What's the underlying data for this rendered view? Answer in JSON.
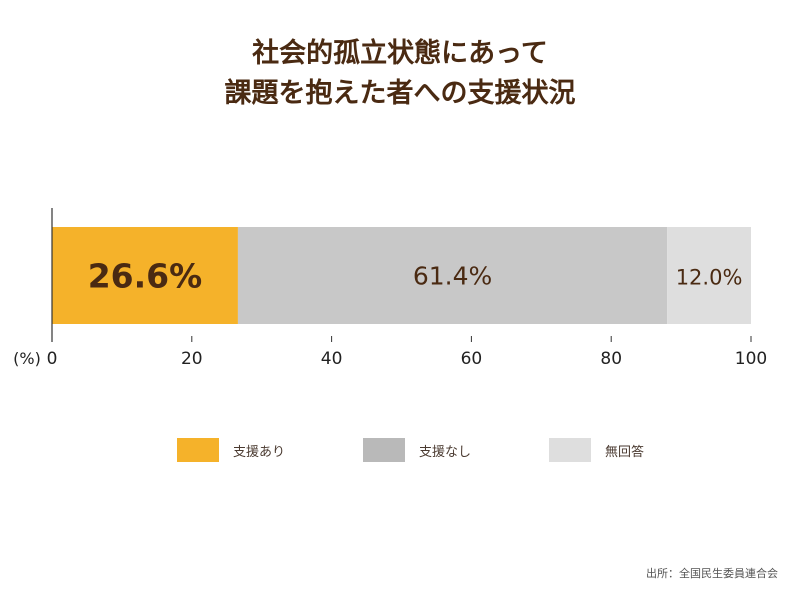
{
  "title_line1": "社会的孤立状態にあって",
  "title_line2": "課題を抱えた者への支援状況",
  "chart_data": {
    "type": "bar",
    "orientation": "horizontal-stacked",
    "title": "社会的孤立状態にあって課題を抱えた者への支援状況",
    "series": [
      {
        "name": "支援あり",
        "value": 26.6,
        "label": "26.6%",
        "color": "#f5b22a"
      },
      {
        "name": "支援なし",
        "value": 61.4,
        "label": "61.4%",
        "color": "#c8c8c8"
      },
      {
        "name": "無回答",
        "value": 12.0,
        "label": "12.0%",
        "color": "#dedede"
      }
    ],
    "xlim": [
      0,
      100
    ],
    "ticks": [
      0,
      20,
      40,
      60,
      80,
      100
    ],
    "tick_labels": [
      "0",
      "20",
      "40",
      "60",
      "80",
      "100"
    ],
    "unit_label": "(%)",
    "legend_position": "bottom"
  },
  "legend": [
    {
      "label": "支援あり",
      "color": "#f5b22a"
    },
    {
      "label": "支援なし",
      "color": "#b9b9b9"
    },
    {
      "label": "無回答",
      "color": "#dedede"
    }
  ],
  "source": "出所：全国民生委員連合会"
}
